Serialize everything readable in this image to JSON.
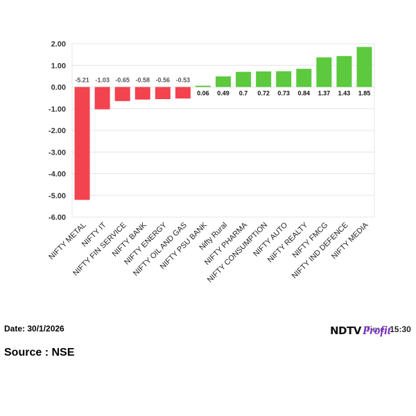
{
  "chart_data": {
    "type": "bar",
    "categories": [
      "NIFTY METAL",
      "NIFTY IT",
      "NIFTY FIN SERVICE",
      "NIFTY BANK",
      "NIFTY ENERGY",
      "NIFTY OIL AND GAS",
      "NIFTY PSU BANK",
      "Nifty Rural",
      "NIFTY PHARMA",
      "NIFTY CONSUMPTION",
      "NIFTY AUTO",
      "NIFTY REALTY",
      "NIFTY FMCG",
      "NIFTY IND DEFENCE",
      "NIFTY MEDIA"
    ],
    "values": [
      -5.21,
      -1.03,
      -0.65,
      -0.58,
      -0.56,
      -0.53,
      0.06,
      0.49,
      0.7,
      0.72,
      0.73,
      0.84,
      1.37,
      1.43,
      1.85
    ],
    "value_labels": [
      "-5.21",
      "-1.03",
      "-0.65",
      "-0.58",
      "-0.56",
      "-0.53",
      "0.06",
      "0.49",
      "0.7",
      "0.72",
      "0.73",
      "0.84",
      "1.37",
      "1.43",
      "1.85"
    ],
    "yticks": [
      "2.00",
      "1.00",
      "0.00",
      "-1.00",
      "-2.00",
      "-3.00",
      "-4.00",
      "-5.00",
      "-6.00"
    ],
    "ylim": [
      -6,
      2
    ],
    "grid": true,
    "colors": {
      "positive": "#5cc93f",
      "negative": "#f2434f"
    }
  },
  "footer": {
    "date": "Date: 30/1/2026",
    "source": "Source : NSE",
    "time": "Time: 15:30"
  },
  "logo": {
    "ndtv": "NDTV",
    "profit": "Profit"
  }
}
